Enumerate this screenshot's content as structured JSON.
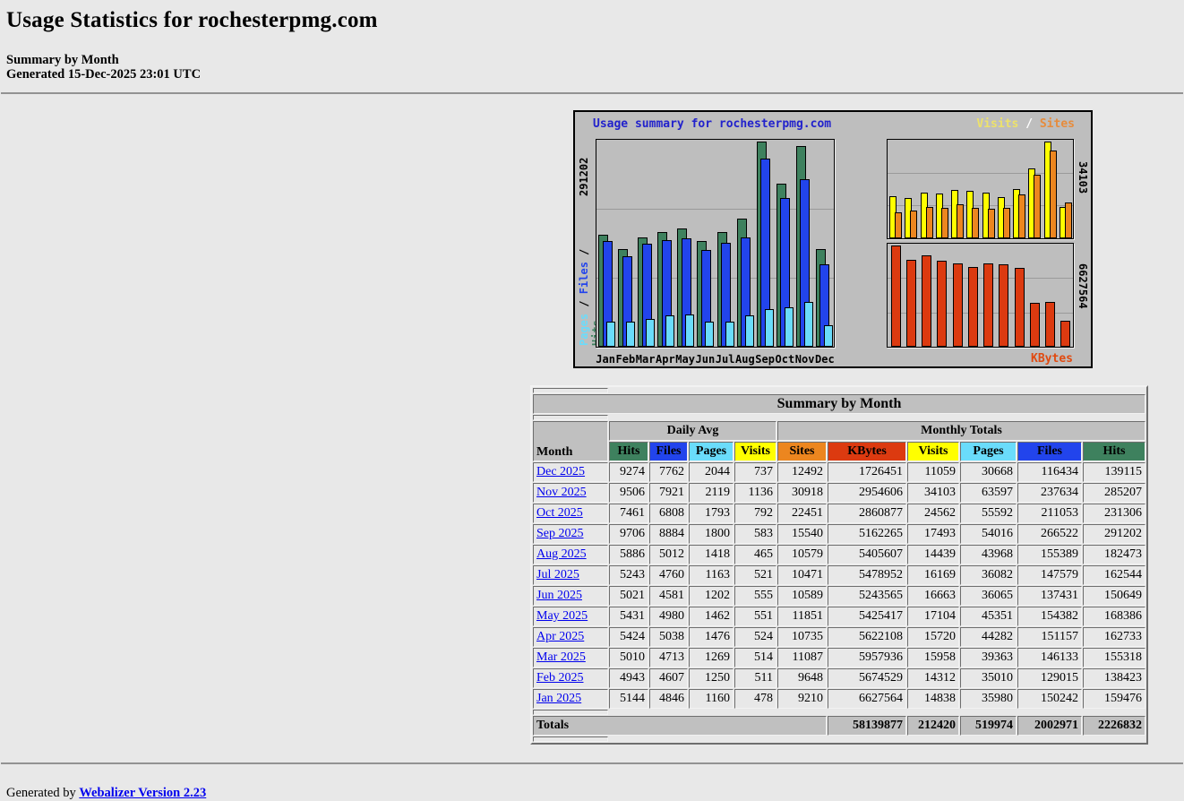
{
  "page": {
    "title": "Usage Statistics for rochesterpmg.com",
    "subtitle_line1": "Summary by Month",
    "subtitle_line2": "Generated 15-Dec-2025 23:01 UTC",
    "footer_prefix": "Generated by ",
    "footer_link_label": "Webalizer Version 2.23",
    "background_color": "#E8E8E8",
    "link_color": "#0000EE"
  },
  "chart_data": {
    "type": "bar",
    "title": "Usage summary for rochesterpmg.com",
    "title_color": "#2222CC",
    "background_color": "#BEBEBE",
    "months": [
      "Jan",
      "Feb",
      "Mar",
      "Apr",
      "May",
      "Jun",
      "Jul",
      "Aug",
      "Sep",
      "Oct",
      "Nov",
      "Dec"
    ],
    "series": [
      {
        "name": "Hits",
        "color": "#3E815E",
        "values": [
          159476,
          138423,
          155318,
          162733,
          168386,
          150649,
          162544,
          182473,
          291202,
          231306,
          285207,
          139115
        ]
      },
      {
        "name": "Files",
        "color": "#2244EC",
        "values": [
          150242,
          129015,
          146133,
          151157,
          154382,
          137431,
          147579,
          155389,
          266522,
          211053,
          237634,
          116434
        ]
      },
      {
        "name": "Pages",
        "color": "#6ADCFB",
        "values": [
          35980,
          35010,
          39363,
          44282,
          45351,
          36065,
          36082,
          43968,
          54016,
          55592,
          63597,
          30668
        ]
      },
      {
        "name": "Visits",
        "color": "#FFFF00",
        "values": [
          14838,
          14312,
          15958,
          15720,
          17104,
          16663,
          16169,
          14439,
          17493,
          24562,
          34103,
          11059
        ]
      },
      {
        "name": "Sites",
        "color": "#EC861F",
        "values": [
          9210,
          9648,
          11087,
          10735,
          11851,
          10589,
          10471,
          10579,
          15540,
          22451,
          30918,
          12492
        ]
      },
      {
        "name": "KBytes",
        "color": "#DC3A10",
        "values": [
          6627564,
          5674529,
          5957936,
          5622108,
          5425417,
          5243565,
          5478952,
          5405607,
          5162265,
          2860877,
          2954606,
          1726451
        ]
      }
    ],
    "ylim_main": [
      0,
      291202
    ],
    "ylim_visits": [
      0,
      34103
    ],
    "ylim_kbytes": [
      0,
      6627564
    ],
    "grid": true,
    "axis": {
      "left_max_label": "291202",
      "right_top_max_label": "34103",
      "right_bottom_max_label": "6627564",
      "kbytes_label": "KBytes",
      "kbytes_label_color": "#E04A10",
      "left_words": [
        {
          "text": "Pages",
          "color": "#6ADCFB"
        },
        {
          "text": " / ",
          "color": "#000000"
        },
        {
          "text": "Files",
          "color": "#2244EC"
        },
        {
          "text": " / ",
          "color": "#000000"
        },
        {
          "text": "Hits",
          "color": "#3E815E"
        }
      ],
      "legend": [
        {
          "text": "Visits",
          "color": "#EDE26A"
        },
        {
          "text": " / ",
          "color": "#FFFFFF"
        },
        {
          "text": "Sites",
          "color": "#E78C3C"
        }
      ]
    }
  },
  "table": {
    "title": "Summary by Month",
    "month_header": "Month",
    "daily_avg_header": "Daily Avg",
    "monthly_totals_header": "Monthly Totals",
    "sub_headers": [
      {
        "label": "Hits",
        "color": "#3E815E"
      },
      {
        "label": "Files",
        "color": "#2244EC"
      },
      {
        "label": "Pages",
        "color": "#6ADCFB"
      },
      {
        "label": "Visits",
        "color": "#FFFF00"
      },
      {
        "label": "Sites",
        "color": "#EC861F"
      },
      {
        "label": "KBytes",
        "color": "#DC3A10"
      },
      {
        "label": "Visits",
        "color": "#FFFF00"
      },
      {
        "label": "Pages",
        "color": "#6ADCFB"
      },
      {
        "label": "Files",
        "color": "#2244EC"
      },
      {
        "label": "Hits",
        "color": "#3E815E"
      }
    ],
    "rows": [
      {
        "month": "Dec 2025",
        "values": [
          9274,
          7762,
          2044,
          737,
          12492,
          1726451,
          11059,
          30668,
          116434,
          139115
        ]
      },
      {
        "month": "Nov 2025",
        "values": [
          9506,
          7921,
          2119,
          1136,
          30918,
          2954606,
          34103,
          63597,
          237634,
          285207
        ]
      },
      {
        "month": "Oct 2025",
        "values": [
          7461,
          6808,
          1793,
          792,
          22451,
          2860877,
          24562,
          55592,
          211053,
          231306
        ]
      },
      {
        "month": "Sep 2025",
        "values": [
          9706,
          8884,
          1800,
          583,
          15540,
          5162265,
          17493,
          54016,
          266522,
          291202
        ]
      },
      {
        "month": "Aug 2025",
        "values": [
          5886,
          5012,
          1418,
          465,
          10579,
          5405607,
          14439,
          43968,
          155389,
          182473
        ]
      },
      {
        "month": "Jul 2025",
        "values": [
          5243,
          4760,
          1163,
          521,
          10471,
          5478952,
          16169,
          36082,
          147579,
          162544
        ]
      },
      {
        "month": "Jun 2025",
        "values": [
          5021,
          4581,
          1202,
          555,
          10589,
          5243565,
          16663,
          36065,
          137431,
          150649
        ]
      },
      {
        "month": "May 2025",
        "values": [
          5431,
          4980,
          1462,
          551,
          11851,
          5425417,
          17104,
          45351,
          154382,
          168386
        ]
      },
      {
        "month": "Apr 2025",
        "values": [
          5424,
          5038,
          1476,
          524,
          10735,
          5622108,
          15720,
          44282,
          151157,
          162733
        ]
      },
      {
        "month": "Mar 2025",
        "values": [
          5010,
          4713,
          1269,
          514,
          11087,
          5957936,
          15958,
          39363,
          146133,
          155318
        ]
      },
      {
        "month": "Feb 2025",
        "values": [
          4943,
          4607,
          1250,
          511,
          9648,
          5674529,
          14312,
          35010,
          129015,
          138423
        ]
      },
      {
        "month": "Jan 2025",
        "values": [
          5144,
          4846,
          1160,
          478,
          9210,
          6627564,
          14838,
          35980,
          150242,
          159476
        ]
      }
    ],
    "totals": {
      "label": "Totals",
      "values": [
        58139877,
        212420,
        519974,
        2002971,
        2226832
      ]
    }
  }
}
